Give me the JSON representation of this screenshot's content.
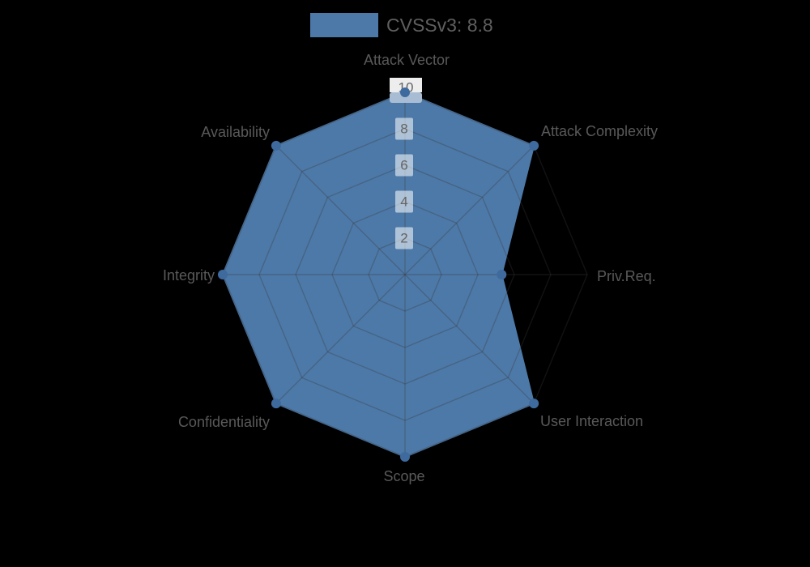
{
  "background": "#000000",
  "legend": {
    "label": "CVSSv3: 8.8",
    "swatch_color": "#4d79a8"
  },
  "chart_data": {
    "type": "radar",
    "title": "CVSSv3: 8.8",
    "categories": [
      "Attack Vector",
      "Attack Complexity",
      "Priv.Req.",
      "User Interaction",
      "Scope",
      "Confidentiality",
      "Integrity",
      "Availability"
    ],
    "series": [
      {
        "name": "CVSSv3: 8.8",
        "values": [
          10,
          10,
          5.3,
          10,
          10,
          10,
          10,
          10
        ]
      }
    ],
    "rmax": 10,
    "ticks": [
      "2",
      "4",
      "6",
      "8",
      "10"
    ],
    "tick_values": [
      2,
      4,
      6,
      8,
      10
    ],
    "grid": true,
    "legend_position": "top",
    "fill_color": "#4d79a8",
    "stroke_color": "#4d79a8",
    "point_color": "#3e6a9e",
    "grid_color": "rgba(55,55,55,0.32)",
    "tick_text_color": "#646464",
    "tick_backdrop_color": "rgba(255,255,255,0.55)",
    "tick_backdrop_top_color": "#ededed",
    "tick_backdrop_band_color": "#a8bdd3",
    "label_color": "#595959"
  }
}
